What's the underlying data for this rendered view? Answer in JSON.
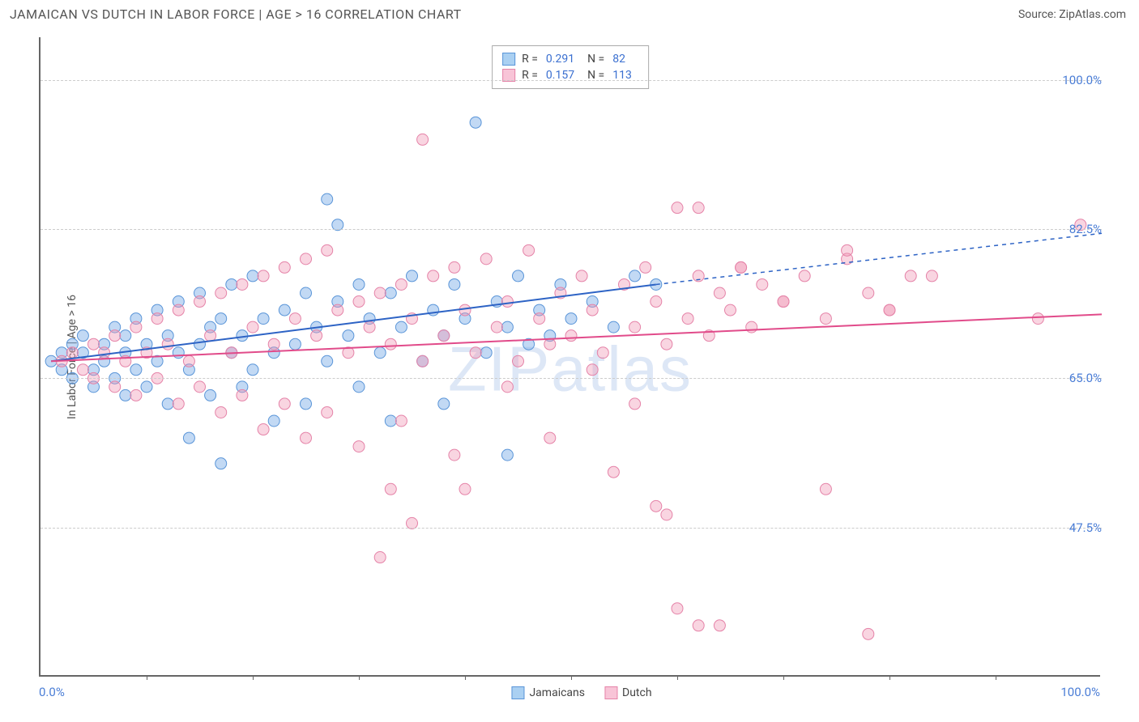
{
  "title": "JAMAICAN VS DUTCH IN LABOR FORCE | AGE > 16 CORRELATION CHART",
  "source": "Source: ZipAtlas.com",
  "watermark": "ZIPatlas",
  "chart": {
    "type": "scatter",
    "y_axis_title": "In Labor Force | Age > 16",
    "xlim": [
      0,
      100
    ],
    "ylim": [
      30,
      105
    ],
    "x_label_min": "0.0%",
    "x_label_max": "100.0%",
    "y_ticks": [
      {
        "v": 47.5,
        "label": "47.5%"
      },
      {
        "v": 65.0,
        "label": "65.0%"
      },
      {
        "v": 82.5,
        "label": "82.5%"
      },
      {
        "v": 100.0,
        "label": "100.0%"
      }
    ],
    "x_minor_ticks": [
      10,
      20,
      30,
      40,
      50,
      60,
      70,
      80,
      90
    ],
    "background_color": "#ffffff",
    "grid_color": "#cccccc",
    "series": [
      {
        "name": "Jamaicans",
        "color_fill": "rgba(120,170,230,0.45)",
        "color_stroke": "#5a95d8",
        "swatch_fill": "#aad0f2",
        "swatch_border": "#5a95d8",
        "r_stat": "0.291",
        "n_stat": "82",
        "trend": {
          "x1": 1,
          "y1": 67,
          "x2": 58,
          "y2": 76,
          "ext_x": 100,
          "ext_y": 82,
          "color": "#2d63c5",
          "width": 2
        },
        "points": [
          [
            1,
            67
          ],
          [
            2,
            68
          ],
          [
            2,
            66
          ],
          [
            3,
            69
          ],
          [
            3,
            65
          ],
          [
            4,
            68
          ],
          [
            4,
            70
          ],
          [
            5,
            66
          ],
          [
            5,
            64
          ],
          [
            6,
            69
          ],
          [
            6,
            67
          ],
          [
            7,
            71
          ],
          [
            7,
            65
          ],
          [
            8,
            68
          ],
          [
            8,
            70
          ],
          [
            8,
            63
          ],
          [
            9,
            72
          ],
          [
            9,
            66
          ],
          [
            10,
            69
          ],
          [
            10,
            64
          ],
          [
            11,
            73
          ],
          [
            11,
            67
          ],
          [
            12,
            70
          ],
          [
            12,
            62
          ],
          [
            13,
            74
          ],
          [
            13,
            68
          ],
          [
            14,
            66
          ],
          [
            14,
            58
          ],
          [
            15,
            75
          ],
          [
            15,
            69
          ],
          [
            16,
            71
          ],
          [
            16,
            63
          ],
          [
            17,
            55
          ],
          [
            17,
            72
          ],
          [
            18,
            68
          ],
          [
            18,
            76
          ],
          [
            19,
            70
          ],
          [
            19,
            64
          ],
          [
            20,
            77
          ],
          [
            20,
            66
          ],
          [
            21,
            72
          ],
          [
            22,
            68
          ],
          [
            22,
            60
          ],
          [
            23,
            73
          ],
          [
            24,
            69
          ],
          [
            25,
            75
          ],
          [
            25,
            62
          ],
          [
            26,
            71
          ],
          [
            27,
            86
          ],
          [
            27,
            67
          ],
          [
            28,
            74
          ],
          [
            28,
            83
          ],
          [
            29,
            70
          ],
          [
            30,
            76
          ],
          [
            30,
            64
          ],
          [
            31,
            72
          ],
          [
            32,
            68
          ],
          [
            33,
            75
          ],
          [
            34,
            71
          ],
          [
            35,
            77
          ],
          [
            36,
            67
          ],
          [
            37,
            73
          ],
          [
            38,
            70
          ],
          [
            39,
            76
          ],
          [
            40,
            72
          ],
          [
            41,
            95
          ],
          [
            42,
            68
          ],
          [
            43,
            74
          ],
          [
            44,
            71
          ],
          [
            44,
            56
          ],
          [
            45,
            77
          ],
          [
            46,
            69
          ],
          [
            47,
            73
          ],
          [
            48,
            70
          ],
          [
            49,
            76
          ],
          [
            50,
            72
          ],
          [
            52,
            74
          ],
          [
            54,
            71
          ],
          [
            56,
            77
          ],
          [
            58,
            76
          ],
          [
            38,
            62
          ],
          [
            33,
            60
          ]
        ]
      },
      {
        "name": "Dutch",
        "color_fill": "rgba(240,150,180,0.40)",
        "color_stroke": "#e583a8",
        "swatch_fill": "#f8c4d7",
        "swatch_border": "#e583a8",
        "r_stat": "0.157",
        "n_stat": "113",
        "trend": {
          "x1": 1,
          "y1": 67,
          "x2": 100,
          "y2": 72.5,
          "color": "#e14b8a",
          "width": 2
        },
        "points": [
          [
            2,
            67
          ],
          [
            3,
            68
          ],
          [
            4,
            66
          ],
          [
            5,
            69
          ],
          [
            5,
            65
          ],
          [
            6,
            68
          ],
          [
            7,
            70
          ],
          [
            7,
            64
          ],
          [
            8,
            67
          ],
          [
            9,
            71
          ],
          [
            9,
            63
          ],
          [
            10,
            68
          ],
          [
            11,
            72
          ],
          [
            11,
            65
          ],
          [
            12,
            69
          ],
          [
            13,
            73
          ],
          [
            13,
            62
          ],
          [
            14,
            67
          ],
          [
            15,
            74
          ],
          [
            15,
            64
          ],
          [
            16,
            70
          ],
          [
            17,
            75
          ],
          [
            17,
            61
          ],
          [
            18,
            68
          ],
          [
            19,
            76
          ],
          [
            19,
            63
          ],
          [
            20,
            71
          ],
          [
            21,
            77
          ],
          [
            21,
            59
          ],
          [
            22,
            69
          ],
          [
            23,
            78
          ],
          [
            23,
            62
          ],
          [
            24,
            72
          ],
          [
            25,
            79
          ],
          [
            25,
            58
          ],
          [
            26,
            70
          ],
          [
            27,
            80
          ],
          [
            27,
            61
          ],
          [
            28,
            73
          ],
          [
            29,
            68
          ],
          [
            30,
            74
          ],
          [
            30,
            57
          ],
          [
            31,
            71
          ],
          [
            32,
            75
          ],
          [
            32,
            44
          ],
          [
            33,
            69
          ],
          [
            34,
            76
          ],
          [
            34,
            60
          ],
          [
            35,
            72
          ],
          [
            36,
            93
          ],
          [
            36,
            67
          ],
          [
            37,
            77
          ],
          [
            38,
            70
          ],
          [
            39,
            78
          ],
          [
            39,
            56
          ],
          [
            40,
            73
          ],
          [
            41,
            68
          ],
          [
            42,
            79
          ],
          [
            43,
            71
          ],
          [
            44,
            74
          ],
          [
            45,
            67
          ],
          [
            46,
            80
          ],
          [
            47,
            72
          ],
          [
            48,
            69
          ],
          [
            49,
            75
          ],
          [
            50,
            70
          ],
          [
            51,
            77
          ],
          [
            52,
            73
          ],
          [
            53,
            68
          ],
          [
            54,
            54
          ],
          [
            55,
            76
          ],
          [
            56,
            71
          ],
          [
            57,
            78
          ],
          [
            58,
            74
          ],
          [
            59,
            69
          ],
          [
            60,
            85
          ],
          [
            61,
            72
          ],
          [
            62,
            77
          ],
          [
            63,
            70
          ],
          [
            64,
            75
          ],
          [
            65,
            73
          ],
          [
            66,
            78
          ],
          [
            67,
            71
          ],
          [
            68,
            76
          ],
          [
            70,
            74
          ],
          [
            72,
            77
          ],
          [
            74,
            72
          ],
          [
            76,
            79
          ],
          [
            78,
            75
          ],
          [
            80,
            73
          ],
          [
            82,
            77
          ],
          [
            59,
            49
          ],
          [
            60,
            38
          ],
          [
            62,
            85
          ],
          [
            64,
            36
          ],
          [
            66,
            78
          ],
          [
            70,
            74
          ],
          [
            74,
            52
          ],
          [
            76,
            80
          ],
          [
            78,
            35
          ],
          [
            80,
            73
          ],
          [
            84,
            77
          ],
          [
            94,
            72
          ],
          [
            98,
            83
          ],
          [
            33,
            52
          ],
          [
            35,
            48
          ],
          [
            40,
            52
          ],
          [
            44,
            64
          ],
          [
            48,
            58
          ],
          [
            52,
            66
          ],
          [
            56,
            62
          ],
          [
            58,
            50
          ],
          [
            62,
            36
          ]
        ]
      }
    ]
  }
}
